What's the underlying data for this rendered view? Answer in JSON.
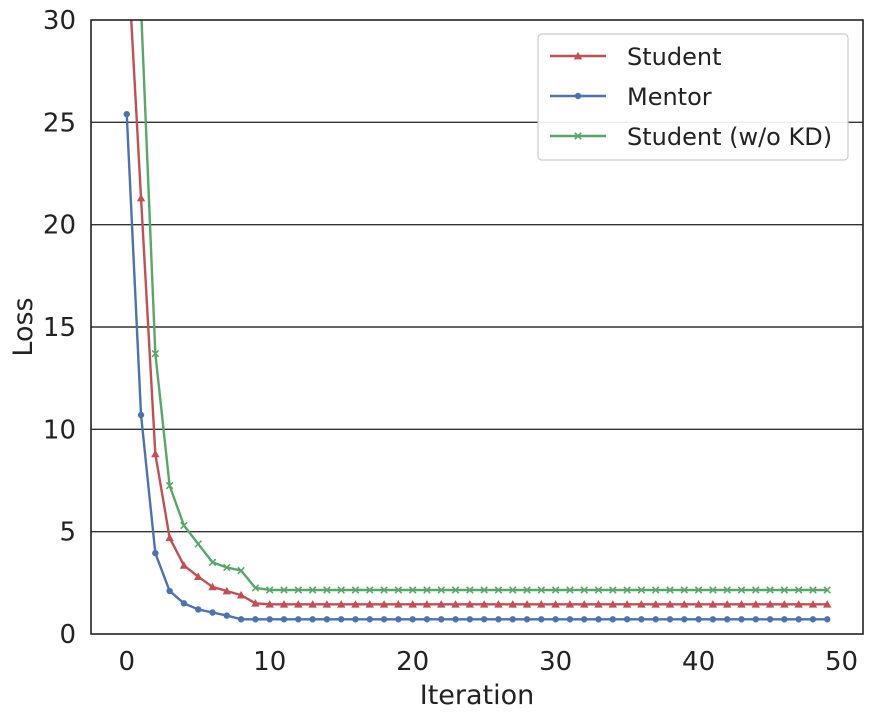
{
  "chart_data": {
    "type": "line",
    "title": "",
    "xlabel": "Iteration",
    "ylabel": "Loss",
    "xlim": [
      -2.5,
      51.5
    ],
    "ylim": [
      0,
      30
    ],
    "xticks": [
      0,
      10,
      20,
      30,
      40,
      50
    ],
    "yticks": [
      0,
      5,
      10,
      15,
      20,
      25,
      30
    ],
    "x_tick_labels": [
      "0",
      "10",
      "20",
      "30",
      "40",
      "50"
    ],
    "y_tick_labels": [
      "0",
      "5",
      "10",
      "15",
      "20",
      "25",
      "30"
    ],
    "grid": "horizontal",
    "legend_position": "top-right",
    "x": [
      0,
      1,
      2,
      3,
      4,
      5,
      6,
      7,
      8,
      9,
      10,
      11,
      12,
      13,
      14,
      15,
      16,
      17,
      18,
      19,
      20,
      21,
      22,
      23,
      24,
      25,
      26,
      27,
      28,
      29,
      30,
      31,
      32,
      33,
      34,
      35,
      36,
      37,
      38,
      39,
      40,
      41,
      42,
      43,
      44,
      45,
      46,
      47,
      48,
      49
    ],
    "series": [
      {
        "name": "Student",
        "color": "#c44e52",
        "marker": "triangle",
        "values": [
          34.0,
          21.3,
          8.8,
          4.7,
          3.35,
          2.8,
          2.3,
          2.1,
          1.9,
          1.5,
          1.45,
          1.45,
          1.45,
          1.45,
          1.45,
          1.45,
          1.45,
          1.45,
          1.45,
          1.45,
          1.45,
          1.45,
          1.45,
          1.45,
          1.45,
          1.45,
          1.45,
          1.45,
          1.45,
          1.45,
          1.45,
          1.45,
          1.45,
          1.45,
          1.45,
          1.45,
          1.45,
          1.45,
          1.45,
          1.45,
          1.45,
          1.45,
          1.45,
          1.45,
          1.45,
          1.45,
          1.45,
          1.45,
          1.45,
          1.45
        ]
      },
      {
        "name": "Mentor",
        "color": "#4c72b0",
        "marker": "circle",
        "values": [
          25.4,
          10.7,
          3.95,
          2.1,
          1.5,
          1.2,
          1.05,
          0.9,
          0.72,
          0.72,
          0.72,
          0.72,
          0.72,
          0.72,
          0.72,
          0.72,
          0.72,
          0.72,
          0.72,
          0.72,
          0.72,
          0.72,
          0.72,
          0.72,
          0.72,
          0.72,
          0.72,
          0.72,
          0.72,
          0.72,
          0.72,
          0.72,
          0.72,
          0.72,
          0.72,
          0.72,
          0.72,
          0.72,
          0.72,
          0.72,
          0.72,
          0.72,
          0.72,
          0.72,
          0.72,
          0.72,
          0.72,
          0.72,
          0.72,
          0.72
        ]
      },
      {
        "name": "Student (w/o KD)",
        "color": "#55a868",
        "marker": "x",
        "values": [
          45.0,
          30.6,
          13.7,
          7.25,
          5.3,
          4.4,
          3.5,
          3.25,
          3.1,
          2.25,
          2.15,
          2.15,
          2.15,
          2.15,
          2.15,
          2.15,
          2.15,
          2.15,
          2.15,
          2.15,
          2.15,
          2.15,
          2.15,
          2.15,
          2.15,
          2.15,
          2.15,
          2.15,
          2.15,
          2.15,
          2.15,
          2.15,
          2.15,
          2.15,
          2.15,
          2.15,
          2.15,
          2.15,
          2.15,
          2.15,
          2.15,
          2.15,
          2.15,
          2.15,
          2.15,
          2.15,
          2.15,
          2.15,
          2.15,
          2.15
        ]
      }
    ]
  }
}
